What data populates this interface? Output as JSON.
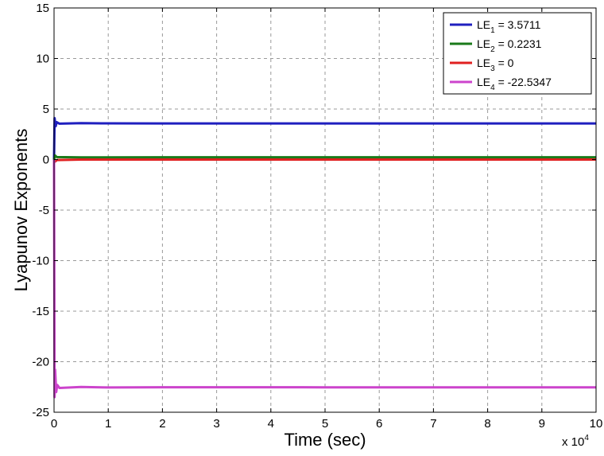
{
  "chart_data": {
    "type": "line",
    "xlabel": "Time (sec)",
    "ylabel": "Lyapunov Exponents",
    "x_multiplier": "x 10",
    "x_multiplier_exponent": "4",
    "xlim": [
      0,
      10
    ],
    "ylim": [
      -25,
      15
    ],
    "x_ticks": [
      0,
      1,
      2,
      3,
      4,
      5,
      6,
      7,
      8,
      9,
      10
    ],
    "y_ticks": [
      -25,
      -20,
      -15,
      -10,
      -5,
      0,
      5,
      10,
      15
    ],
    "grid": true,
    "legend_position": "top-right",
    "series": [
      {
        "name_prefix": "LE",
        "name_sub": "1",
        "name_suffix": " = 3.5711",
        "color": "#1f1fbf",
        "x": [
          0,
          0.01,
          0.03,
          0.05,
          0.1,
          0.5,
          1,
          2,
          5,
          10
        ],
        "y": [
          0,
          4.1,
          3.3,
          3.7,
          3.55,
          3.6,
          3.58,
          3.57,
          3.571,
          3.5711
        ]
      },
      {
        "name_prefix": "LE",
        "name_sub": "2",
        "name_suffix": " = 0.2231",
        "color": "#1a7a1a",
        "x": [
          0,
          0.02,
          0.05,
          0.5,
          2,
          5,
          10
        ],
        "y": [
          0,
          0.4,
          0.25,
          0.22,
          0.223,
          0.2231,
          0.2231
        ]
      },
      {
        "name_prefix": "LE",
        "name_sub": "3",
        "name_suffix": " = 0",
        "color": "#e02020",
        "x": [
          0,
          0.02,
          0.05,
          0.5,
          2,
          5,
          10
        ],
        "y": [
          0,
          -0.2,
          -0.05,
          0,
          0,
          0,
          0
        ]
      },
      {
        "name_prefix": "LE",
        "name_sub": "4",
        "name_suffix": " = -22.5347",
        "color": "#cc44cc",
        "x": [
          0,
          0.01,
          0.02,
          0.04,
          0.06,
          0.1,
          0.5,
          1,
          2,
          5,
          10
        ],
        "y": [
          0,
          -23.5,
          -20.8,
          -23.0,
          -22.3,
          -22.6,
          -22.5,
          -22.55,
          -22.53,
          -22.535,
          -22.5347
        ]
      }
    ]
  }
}
